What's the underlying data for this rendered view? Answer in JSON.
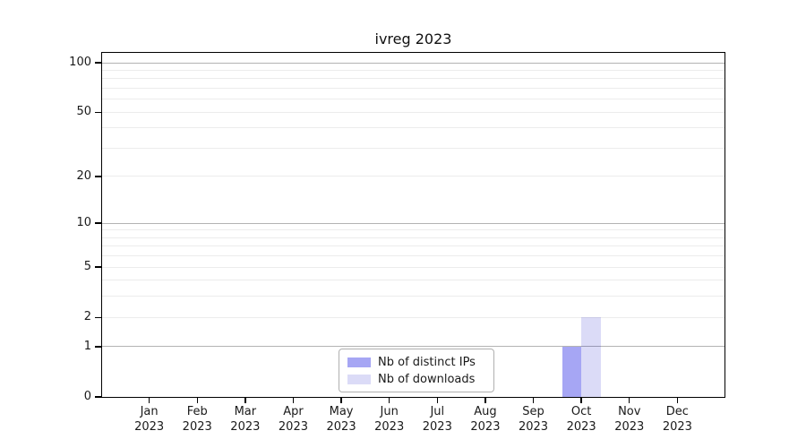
{
  "chart_data": {
    "type": "bar",
    "title": "ivreg 2023",
    "x_months": [
      "Jan",
      "Feb",
      "Mar",
      "Apr",
      "May",
      "Jun",
      "Jul",
      "Aug",
      "Sep",
      "Oct",
      "Nov",
      "Dec"
    ],
    "x_year": "2023",
    "series": [
      {
        "name": "Nb of distinct IPs",
        "color": "rgba(0,0,224,0.35)",
        "swatch_color": "#a6a6f4",
        "values": [
          0,
          0,
          0,
          0,
          0,
          0,
          0,
          0,
          0,
          1,
          0,
          0
        ]
      },
      {
        "name": "Nb of downloads",
        "color": "rgba(0,0,195,0.14)",
        "swatch_color": "#dbdbf6",
        "values": [
          0,
          0,
          0,
          0,
          0,
          0,
          0,
          0,
          0,
          2,
          0,
          0
        ]
      }
    ],
    "y_scale": "log10(1+y)",
    "y_ticks": [
      0,
      1,
      2,
      5,
      10,
      20,
      50,
      100
    ],
    "grid_major": [
      1,
      10,
      100
    ],
    "grid_minor": [
      2,
      3,
      4,
      5,
      6,
      7,
      8,
      9,
      20,
      30,
      40,
      50,
      60,
      70,
      80,
      90
    ],
    "ylim": [
      0,
      116
    ],
    "legend_position": "lower center",
    "grid_on": true,
    "colors": {
      "major_grid": "#b3b3b3",
      "minor_grid": "#ececec",
      "axis": "#000000",
      "text": "#1a1a1a",
      "background": "#ffffff"
    }
  }
}
